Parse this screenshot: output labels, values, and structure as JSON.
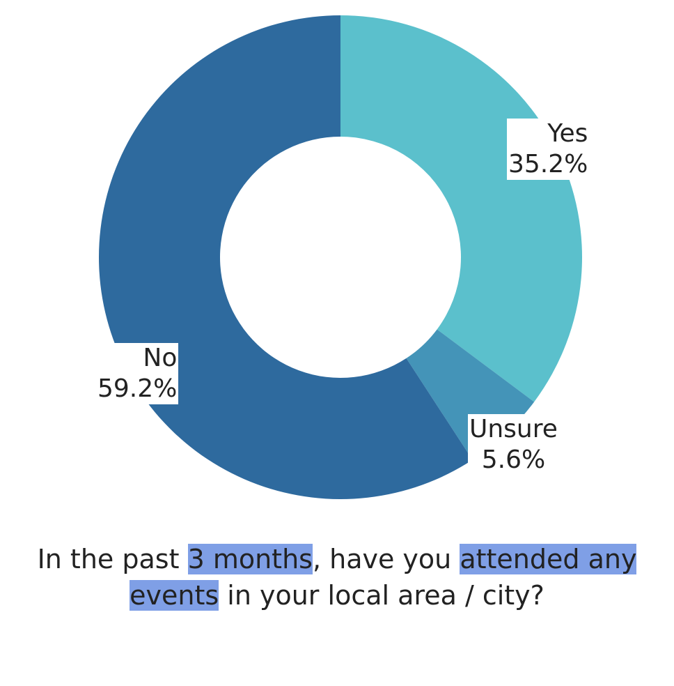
{
  "chart_data": {
    "type": "pie",
    "title": "",
    "hole": true,
    "slices": [
      {
        "label": "Yes",
        "value": 35.2,
        "value_text": "35.2%",
        "color": "#5bc0cc"
      },
      {
        "label": "Unsure",
        "value": 5.6,
        "value_text": "5.6%",
        "color": "#4494b8"
      },
      {
        "label": "No",
        "value": 59.2,
        "value_text": "59.2%",
        "color": "#2e6a9e"
      }
    ]
  },
  "caption": {
    "part1": "In the past ",
    "highlight1": "3 months",
    "part2": ", have you ",
    "highlight2": "attended any events",
    "part3": " in your local area / city?"
  }
}
